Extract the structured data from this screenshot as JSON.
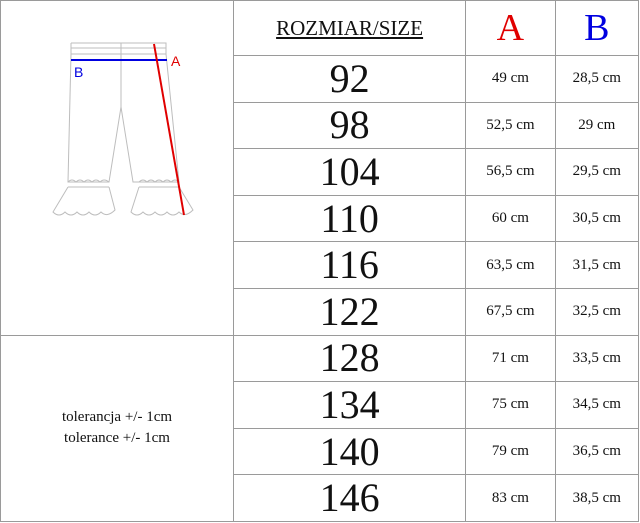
{
  "header": {
    "size_label": "ROZMIAR/SIZE",
    "col_a": "A",
    "col_b": "B",
    "color_a": "#e00000",
    "color_b": "#0000e0"
  },
  "diagram": {
    "label_a": "A",
    "label_b": "B",
    "icon": "pants-measurement-diagram"
  },
  "tolerance": [
    "tolerancja +/- 1cm",
    "tolerance +/- 1cm"
  ],
  "rows": [
    {
      "size": "92",
      "a": "49 cm",
      "b": "28,5 cm"
    },
    {
      "size": "98",
      "a": "52,5 cm",
      "b": "29 cm"
    },
    {
      "size": "104",
      "a": "56,5 cm",
      "b": "29,5 cm"
    },
    {
      "size": "110",
      "a": "60 cm",
      "b": "30,5 cm"
    },
    {
      "size": "116",
      "a": "63,5 cm",
      "b": "31,5 cm"
    },
    {
      "size": "122",
      "a": "67,5 cm",
      "b": "32,5 cm"
    },
    {
      "size": "128",
      "a": "71 cm",
      "b": "33,5 cm"
    },
    {
      "size": "134",
      "a": "75 cm",
      "b": "34,5 cm"
    },
    {
      "size": "140",
      "a": "79 cm",
      "b": "36,5 cm"
    },
    {
      "size": "146",
      "a": "83 cm",
      "b": "38,5 cm"
    }
  ]
}
